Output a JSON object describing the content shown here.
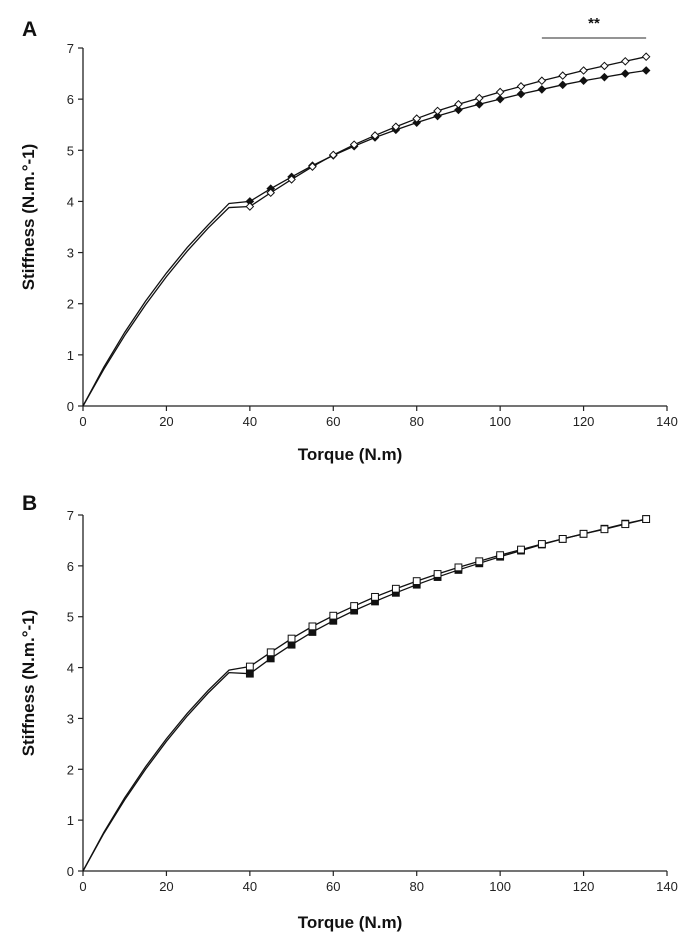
{
  "chart_data": [
    {
      "type": "line",
      "panel_label": "A",
      "xlabel": "Torque (N.m)",
      "ylabel": "Stiffness (N.m.°-1)",
      "xlim": [
        0,
        140
      ],
      "ylim": [
        0,
        7
      ],
      "xticks": [
        0,
        20,
        40,
        60,
        80,
        100,
        120,
        140
      ],
      "yticks": [
        0,
        1,
        2,
        3,
        4,
        5,
        6,
        7
      ],
      "x": [
        0,
        5,
        10,
        15,
        20,
        25,
        30,
        35,
        40,
        45,
        50,
        55,
        60,
        65,
        70,
        75,
        80,
        85,
        90,
        95,
        100,
        105,
        110,
        115,
        120,
        125,
        130,
        135
      ],
      "series": [
        {
          "marker": "filled-diamond",
          "color": "#111111",
          "markers_from_x": 40,
          "values": [
            0,
            0.76,
            1.44,
            2.05,
            2.6,
            3.1,
            3.54,
            3.96,
            4.0,
            4.25,
            4.48,
            4.7,
            4.9,
            5.08,
            5.25,
            5.4,
            5.54,
            5.67,
            5.79,
            5.9,
            6.0,
            6.1,
            6.19,
            6.28,
            6.36,
            6.43,
            6.5,
            6.56
          ]
        },
        {
          "marker": "open-diamond",
          "color": "#111111",
          "markers_from_x": 40,
          "values": [
            0,
            0.72,
            1.38,
            1.98,
            2.53,
            3.03,
            3.48,
            3.88,
            3.9,
            4.17,
            4.43,
            4.68,
            4.91,
            5.11,
            5.29,
            5.46,
            5.62,
            5.77,
            5.9,
            6.02,
            6.14,
            6.25,
            6.36,
            6.46,
            6.56,
            6.65,
            6.74,
            6.83
          ]
        }
      ],
      "annotation": {
        "text": "**",
        "x_range": [
          110,
          135
        ]
      }
    },
    {
      "type": "line",
      "panel_label": "B",
      "xlabel": "Torque (N.m)",
      "ylabel": "Stiffness (N.m.°-1)",
      "xlim": [
        0,
        140
      ],
      "ylim": [
        0,
        7
      ],
      "xticks": [
        0,
        20,
        40,
        60,
        80,
        100,
        120,
        140
      ],
      "yticks": [
        0,
        1,
        2,
        3,
        4,
        5,
        6,
        7
      ],
      "x": [
        0,
        5,
        10,
        15,
        20,
        25,
        30,
        35,
        40,
        45,
        50,
        55,
        60,
        65,
        70,
        75,
        80,
        85,
        90,
        95,
        100,
        105,
        110,
        115,
        120,
        125,
        130,
        135
      ],
      "series": [
        {
          "marker": "filled-square",
          "color": "#111111",
          "markers_from_x": 40,
          "values": [
            0,
            0.74,
            1.4,
            2.0,
            2.55,
            3.05,
            3.5,
            3.9,
            3.88,
            4.18,
            4.45,
            4.7,
            4.92,
            5.12,
            5.3,
            5.47,
            5.63,
            5.78,
            5.92,
            6.05,
            6.18,
            6.3,
            6.42,
            6.53,
            6.63,
            6.73,
            6.83,
            6.92
          ]
        },
        {
          "marker": "open-square",
          "color": "#111111",
          "markers_from_x": 40,
          "values": [
            0,
            0.76,
            1.44,
            2.05,
            2.6,
            3.1,
            3.55,
            3.95,
            4.02,
            4.3,
            4.57,
            4.81,
            5.02,
            5.21,
            5.39,
            5.55,
            5.7,
            5.84,
            5.97,
            6.09,
            6.21,
            6.32,
            6.43,
            6.53,
            6.63,
            6.72,
            6.82,
            6.92
          ]
        }
      ]
    }
  ]
}
